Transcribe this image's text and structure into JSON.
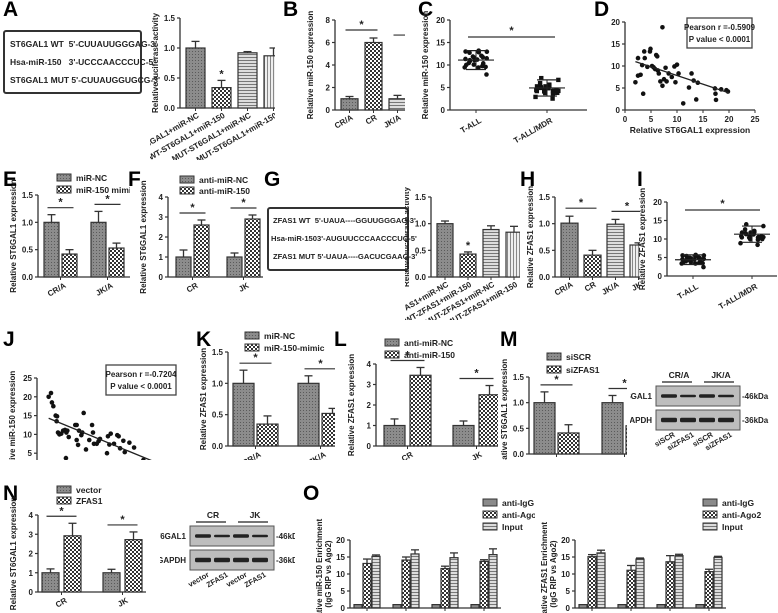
{
  "panel_labels": [
    "A",
    "B",
    "C",
    "D",
    "E",
    "F",
    "G",
    "H",
    "I",
    "J",
    "K",
    "L",
    "M",
    "N",
    "O"
  ],
  "colors": {
    "bar_fill": "#9a9a9a",
    "stroke": "#333333",
    "dot": "#111111",
    "axis": "#333333"
  },
  "A": {
    "sequence_box": {
      "rows": [
        {
          "name": "ST6GAL1 WT",
          "seq": "5'-CUUAUUGGGAG-3'"
        },
        {
          "name": "Hsa-miR-150",
          "seq": "3'-UCCCAACCCUC-5'"
        },
        {
          "name": "ST6GAL1 MUT",
          "seq": "5'-CUUAUGGUGCG-3'"
        }
      ]
    }
  },
  "G": {
    "sequence_box": {
      "rows": [
        {
          "name": "ZFAS1 WT",
          "seq": "5'-UAUA----GGUUGGGAG-3'"
        },
        {
          "name": "Hsa-miR-150",
          "seq": "3'-AUGUUCCCAACCCUC-5'"
        },
        {
          "name": "ZFAS1 MUT",
          "seq": "5'-UAUA----GACUCGAAG-3'"
        }
      ]
    }
  },
  "chart_data": [
    {
      "panel": "A",
      "type": "bar",
      "ylabel": "Relative luciferase activity",
      "ylim": [
        0,
        1.5
      ],
      "yticks": [
        "0.0",
        "0.5",
        "1.0",
        "1.5"
      ],
      "categories": [
        "WT-ST6GAL1+miR-NC",
        "WT-ST6GAL1+miR-150",
        "MUT-ST6GAL1+miR-NC",
        "MUT-ST6GAL1+miR-150"
      ],
      "values": [
        1.0,
        0.34,
        0.92,
        0.87
      ],
      "errors": [
        0.11,
        0.12,
        0.02,
        0.13
      ],
      "patterns": [
        "dense",
        "check",
        "hstripe",
        "vstripe"
      ],
      "annotations": [
        {
          "index": 1,
          "text": "*"
        }
      ]
    },
    {
      "panel": "B",
      "type": "bar",
      "ylabel": "Relative miR-150 expression",
      "ylim": [
        0,
        8
      ],
      "yticks": [
        "0",
        "2",
        "4",
        "6",
        "8"
      ],
      "categories": [
        "CR/A",
        "CR",
        "JK/A",
        "JK"
      ],
      "values": [
        1.0,
        6.0,
        1.0,
        5.3
      ],
      "errors": [
        0.2,
        0.4,
        0.3,
        0.65
      ],
      "patterns": [
        "dense",
        "check",
        "hstripe",
        "vstripe"
      ],
      "brackets": [
        {
          "from": 0,
          "to": 1,
          "text": "*"
        },
        {
          "from": 2,
          "to": 3,
          "text": "*"
        }
      ]
    },
    {
      "panel": "C",
      "type": "scatter",
      "ylabel": "Relative miR-150 expression",
      "ylim": [
        0,
        20
      ],
      "yticks": [
        "0",
        "5",
        "10",
        "15",
        "20"
      ],
      "groups": [
        {
          "name": "T-ALL",
          "mean": 11.1,
          "sd": 2.1,
          "marker": "circle"
        },
        {
          "name": "T-ALL/MDR",
          "mean": 4.9,
          "sd": 1.8,
          "marker": "square"
        }
      ],
      "brackets": [
        {
          "from": 0,
          "to": 1,
          "text": "*"
        }
      ]
    },
    {
      "panel": "D",
      "type": "scatter",
      "xlabel": "Relative ST6GAL1 expression",
      "ylabel": "Relative miR-150 expression",
      "xlim": [
        0,
        25
      ],
      "ylim": [
        0,
        20
      ],
      "xticks": [
        "0",
        "5",
        "10",
        "15",
        "20",
        "25"
      ],
      "yticks": [
        "0",
        "5",
        "10",
        "15",
        "20"
      ],
      "legend": [
        "Pearson r =-0.5909",
        "P value < 0.0001"
      ],
      "points": [
        [
          2,
          6.3
        ],
        [
          2.5,
          11.8
        ],
        [
          2.5,
          7.8
        ],
        [
          3,
          8
        ],
        [
          3.3,
          10.2
        ],
        [
          3.5,
          3.7
        ],
        [
          3.7,
          13.3
        ],
        [
          3.8,
          11.8
        ],
        [
          4.3,
          9.8
        ],
        [
          4.8,
          13.3
        ],
        [
          4.9,
          13.9
        ],
        [
          5.2,
          10
        ],
        [
          5.5,
          9.7
        ],
        [
          5.8,
          9.3
        ],
        [
          6,
          12.5
        ],
        [
          6.2,
          12.2
        ],
        [
          6.3,
          9
        ],
        [
          6.5,
          8.3
        ],
        [
          6.8,
          6.5
        ],
        [
          7.2,
          5.5
        ],
        [
          7.2,
          18.8
        ],
        [
          7.5,
          7
        ],
        [
          7.8,
          9.6
        ],
        [
          8,
          6.5
        ],
        [
          8.4,
          8.3
        ],
        [
          9,
          7.5
        ],
        [
          9.5,
          9.9
        ],
        [
          9.7,
          6.3
        ],
        [
          10,
          10.3
        ],
        [
          10.3,
          8.3
        ],
        [
          11.2,
          1.5
        ],
        [
          12.3,
          5.1
        ],
        [
          12.8,
          8.3
        ],
        [
          13.2,
          6.7
        ],
        [
          13.7,
          2.4
        ],
        [
          14,
          6.2
        ],
        [
          17.3,
          4.9
        ],
        [
          17.4,
          3.7
        ],
        [
          17.5,
          2.3
        ],
        [
          18.5,
          4.7
        ],
        [
          19.5,
          4.5
        ],
        [
          19.8,
          4.2
        ]
      ],
      "fit": [
        [
          2,
          11
        ],
        [
          20,
          3.9
        ]
      ]
    },
    {
      "panel": "E",
      "type": "bar",
      "ylabel": "Relative ST6GAL1 expression",
      "ylim": [
        0,
        1.5
      ],
      "yticks": [
        "0.0",
        "0.5",
        "1.0",
        "1.5"
      ],
      "categories": [
        "CR/A",
        "JK/A"
      ],
      "series": [
        {
          "name": "miR-NC",
          "values": [
            1.0,
            1.0
          ],
          "errors": [
            0.14,
            0.2
          ],
          "pattern": "dense"
        },
        {
          "name": "miR-150 mimic",
          "values": [
            0.42,
            0.53
          ],
          "errors": [
            0.08,
            0.09
          ],
          "pattern": "check"
        }
      ],
      "brackets": [
        {
          "group": 0,
          "text": "*"
        },
        {
          "group": 1,
          "text": "*"
        }
      ]
    },
    {
      "panel": "F",
      "type": "bar",
      "ylabel": "Relative ST6GAL1 expression",
      "ylim": [
        0,
        4
      ],
      "yticks": [
        "0",
        "1",
        "2",
        "3",
        "4"
      ],
      "categories": [
        "CR",
        "JK"
      ],
      "series": [
        {
          "name": "anti-miR-NC",
          "values": [
            1.0,
            1.0
          ],
          "errors": [
            0.35,
            0.2
          ],
          "pattern": "dense"
        },
        {
          "name": "anti-miR-150",
          "values": [
            2.6,
            2.9
          ],
          "errors": [
            0.25,
            0.2
          ],
          "pattern": "check"
        }
      ],
      "brackets": [
        {
          "group": 0,
          "text": "*"
        },
        {
          "group": 1,
          "text": "*"
        }
      ]
    },
    {
      "panel": "G",
      "type": "bar",
      "ylabel": "Relative luciferase activity",
      "ylim": [
        0,
        1.5
      ],
      "yticks": [
        "0.0",
        "0.5",
        "1.0",
        "1.5"
      ],
      "categories": [
        "WT-ZFAS1+miR-NC",
        "WT-ZFAS1+miR-150",
        "MUT-ZFAS1+miR-NC",
        "MUT-ZFAS1+miR-150"
      ],
      "values": [
        1.0,
        0.43,
        0.89,
        0.84
      ],
      "errors": [
        0.05,
        0.04,
        0.07,
        0.11
      ],
      "patterns": [
        "dense",
        "check",
        "hstripe",
        "vstripe"
      ],
      "annotations": [
        {
          "index": 1,
          "text": "*"
        }
      ]
    },
    {
      "panel": "H",
      "type": "bar",
      "ylabel": "Relative ZFAS1 expression",
      "ylim": [
        0,
        1.5
      ],
      "yticks": [
        "0.0",
        "0.5",
        "1.0",
        "1.5"
      ],
      "categories": [
        "CR/A",
        "CR",
        "JK/A",
        "JK"
      ],
      "values": [
        1.01,
        0.41,
        0.99,
        0.6
      ],
      "errors": [
        0.13,
        0.09,
        0.09,
        0.04
      ],
      "patterns": [
        "dense",
        "check",
        "hstripe",
        "vstripe"
      ],
      "brackets": [
        {
          "from": 0,
          "to": 1,
          "text": "*"
        },
        {
          "from": 2,
          "to": 3,
          "text": "*"
        }
      ]
    },
    {
      "panel": "I",
      "type": "scatter",
      "ylabel": "Relative ZFAS1 expression",
      "ylim": [
        0,
        20
      ],
      "yticks": [
        "0",
        "5",
        "10",
        "15",
        "20"
      ],
      "groups": [
        {
          "name": "T-ALL",
          "mean": 4.4,
          "sd": 1.3,
          "marker": "circle"
        },
        {
          "name": "T-ALL/MDR",
          "mean": 11.3,
          "sd": 2.2,
          "marker": "circle"
        }
      ],
      "brackets": [
        {
          "from": 0,
          "to": 1,
          "text": "*"
        }
      ]
    },
    {
      "panel": "J",
      "type": "scatter",
      "xlabel": "Relative ZFAS1 expression",
      "ylabel": "Relative miR-150 expression",
      "xlim": [
        0,
        30
      ],
      "ylim": [
        0,
        25
      ],
      "xticks": [
        "0",
        "10",
        "20",
        "30"
      ],
      "yticks": [
        "0",
        "5",
        "10",
        "15",
        "20",
        "25"
      ],
      "legend": [
        "Pearson r =-0.7204",
        "P value < 0.0001"
      ],
      "points": [
        [
          2.5,
          20
        ],
        [
          3,
          21
        ],
        [
          3.2,
          18.5
        ],
        [
          3.5,
          17.5
        ],
        [
          4,
          15
        ],
        [
          4.3,
          14.8
        ],
        [
          4.2,
          13.5
        ],
        [
          4.5,
          10.5
        ],
        [
          4.8,
          10
        ],
        [
          5.2,
          10.2
        ],
        [
          5.6,
          11
        ],
        [
          6,
          11.2
        ],
        [
          6.3,
          10.5
        ],
        [
          6.5,
          11
        ],
        [
          6.2,
          3.7
        ],
        [
          6.8,
          9.3
        ],
        [
          8.2,
          12.5
        ],
        [
          8.5,
          12.5
        ],
        [
          8.5,
          8.5
        ],
        [
          8.8,
          7.2
        ],
        [
          9,
          11
        ],
        [
          9.5,
          9.8
        ],
        [
          9.7,
          10.5
        ],
        [
          10,
          15.7
        ],
        [
          10.5,
          6
        ],
        [
          11.2,
          8.5
        ],
        [
          11.8,
          12.5
        ],
        [
          12,
          10.5
        ],
        [
          12.2,
          7.5
        ],
        [
          12.8,
          7.5
        ],
        [
          13.2,
          8.2
        ],
        [
          13.5,
          8.8
        ],
        [
          15,
          5
        ],
        [
          15.2,
          9.5
        ],
        [
          15.5,
          7.3
        ],
        [
          15.8,
          10.2
        ],
        [
          16.5,
          7.5
        ],
        [
          17.2,
          9.8
        ],
        [
          17.5,
          9.5
        ],
        [
          17.8,
          6.3
        ],
        [
          18.5,
          8.3
        ],
        [
          18.8,
          5.3
        ],
        [
          19.8,
          7.8
        ],
        [
          20,
          2.5
        ],
        [
          20.8,
          6.5
        ],
        [
          22.8,
          3.2
        ],
        [
          24.8,
          2.3
        ]
      ],
      "fit": [
        [
          2.5,
          14.3
        ],
        [
          25,
          2.8
        ]
      ]
    },
    {
      "panel": "K",
      "type": "bar",
      "ylabel": "Relative ZFAS1 expression",
      "ylim": [
        0,
        1.5
      ],
      "yticks": [
        "0.0",
        "0.5",
        "1.0",
        "1.5"
      ],
      "categories": [
        "CR/A",
        "JK/A"
      ],
      "series": [
        {
          "name": "miR-NC",
          "values": [
            1.0,
            1.0
          ],
          "errors": [
            0.21,
            0.12
          ],
          "pattern": "dense"
        },
        {
          "name": "miR-150-mimic",
          "values": [
            0.35,
            0.52
          ],
          "errors": [
            0.13,
            0.08
          ],
          "pattern": "check"
        }
      ],
      "brackets": [
        {
          "group": 0,
          "text": "*"
        },
        {
          "group": 1,
          "text": "*"
        }
      ]
    },
    {
      "panel": "L",
      "type": "bar",
      "ylabel": "Relative ZFAS1 expression",
      "ylim": [
        0,
        4
      ],
      "yticks": [
        "0",
        "1",
        "2",
        "3",
        "4"
      ],
      "categories": [
        "CR",
        "JK"
      ],
      "series": [
        {
          "name": "anti-miR-NC",
          "values": [
            1.0,
            1.0
          ],
          "errors": [
            0.32,
            0.22
          ],
          "pattern": "dense"
        },
        {
          "name": "anti-miR-150",
          "values": [
            3.45,
            2.5
          ],
          "errors": [
            0.38,
            0.45
          ],
          "pattern": "check"
        }
      ],
      "brackets": [
        {
          "group": 0,
          "text": "*"
        },
        {
          "group": 1,
          "text": "*"
        }
      ]
    },
    {
      "panel": "M",
      "type": "bar",
      "ylabel": "Relative ST6GAL1 expression",
      "ylim": [
        0,
        1.5
      ],
      "yticks": [
        "0.0",
        "0.5",
        "1.0",
        "1.5"
      ],
      "categories": [
        "CR/A",
        "JK/A"
      ],
      "series": [
        {
          "name": "siSCR",
          "values": [
            1.0,
            1.0
          ],
          "errors": [
            0.21,
            0.14
          ],
          "pattern": "dense"
        },
        {
          "name": "siZFAS1",
          "values": [
            0.41,
            0.55
          ],
          "errors": [
            0.16,
            0.11
          ],
          "pattern": "check"
        }
      ],
      "brackets": [
        {
          "group": 0,
          "text": "*"
        },
        {
          "group": 1,
          "text": "*"
        }
      ]
    },
    {
      "panel": "N",
      "type": "bar",
      "ylabel": "Relative ST6GAL1 expression",
      "ylim": [
        0,
        4
      ],
      "yticks": [
        "0",
        "1",
        "2",
        "3",
        "4"
      ],
      "categories": [
        "CR",
        "JK"
      ],
      "series": [
        {
          "name": "vector",
          "values": [
            1.0,
            1.0
          ],
          "errors": [
            0.2,
            0.18
          ],
          "pattern": "dense"
        },
        {
          "name": "ZFAS1",
          "values": [
            2.92,
            2.72
          ],
          "errors": [
            0.65,
            0.4
          ],
          "pattern": "check"
        }
      ],
      "brackets": [
        {
          "group": 0,
          "text": "*"
        },
        {
          "group": 1,
          "text": "*"
        }
      ]
    },
    {
      "panel": "O1",
      "type": "bar",
      "ylabel": "Relative miR-150 Enrichment",
      "ylabel2": "(IgG RIP vs Ago2)",
      "ylim": [
        0,
        20
      ],
      "yticks": [
        "0",
        "5",
        "10",
        "15",
        "20"
      ],
      "categories": [
        "CR/A",
        "CR",
        "JK/A",
        "JK"
      ],
      "series": [
        {
          "name": "anti-IgG",
          "values": [
            1,
            1,
            1,
            1
          ],
          "errors": [
            0,
            0,
            0,
            0
          ],
          "pattern": "solid"
        },
        {
          "name": "anti-Ago2",
          "values": [
            13.1,
            14.1,
            11.6,
            13.7
          ],
          "errors": [
            1.3,
            0.9,
            0.7,
            0.5
          ],
          "pattern": "check"
        },
        {
          "name": "Input",
          "values": [
            15.2,
            15.9,
            14.8,
            15.7
          ],
          "errors": [
            0.4,
            1.2,
            1.4,
            1.7
          ],
          "pattern": "hstripe"
        }
      ]
    },
    {
      "panel": "O2",
      "type": "bar",
      "ylabel": "Relative ZFAS1 Enrichment",
      "ylabel2": "(IgG RIP vs Ago2)",
      "ylim": [
        0,
        20
      ],
      "yticks": [
        "0",
        "5",
        "10",
        "15",
        "20"
      ],
      "categories": [
        "CR/A",
        "CR",
        "JK/A",
        "JK"
      ],
      "series": [
        {
          "name": "anti-IgG",
          "values": [
            1,
            1,
            1,
            1
          ],
          "errors": [
            0,
            0,
            0,
            0
          ],
          "pattern": "solid"
        },
        {
          "name": "anti-Ago2",
          "values": [
            15.1,
            11.1,
            13.6,
            10.7
          ],
          "errors": [
            0.6,
            1.4,
            1.8,
            0.7
          ],
          "pattern": "check"
        },
        {
          "name": "Input",
          "values": [
            16.2,
            14.4,
            15.4,
            14.9
          ],
          "errors": [
            0.8,
            0.3,
            0.4,
            0.3
          ],
          "pattern": "hstripe"
        }
      ]
    }
  ],
  "blots": {
    "M": {
      "groups": [
        "CR/A",
        "JK/A"
      ],
      "rows": [
        {
          "name": "ST6GAL1",
          "size": "-46kDa"
        },
        {
          "name": "GAPDH",
          "size": "-36kDa"
        }
      ],
      "lanes": [
        "siSCR",
        "siZFAS1",
        "siSCR",
        "siZFAS1"
      ]
    },
    "N": {
      "groups": [
        "CR",
        "JK"
      ],
      "rows": [
        {
          "name": "ST6GAL1",
          "size": "-46kDa"
        },
        {
          "name": "GAPDH",
          "size": "-36kDa"
        }
      ],
      "lanes": [
        "vector",
        "ZFAS1",
        "vector",
        "ZFAS1"
      ]
    }
  }
}
